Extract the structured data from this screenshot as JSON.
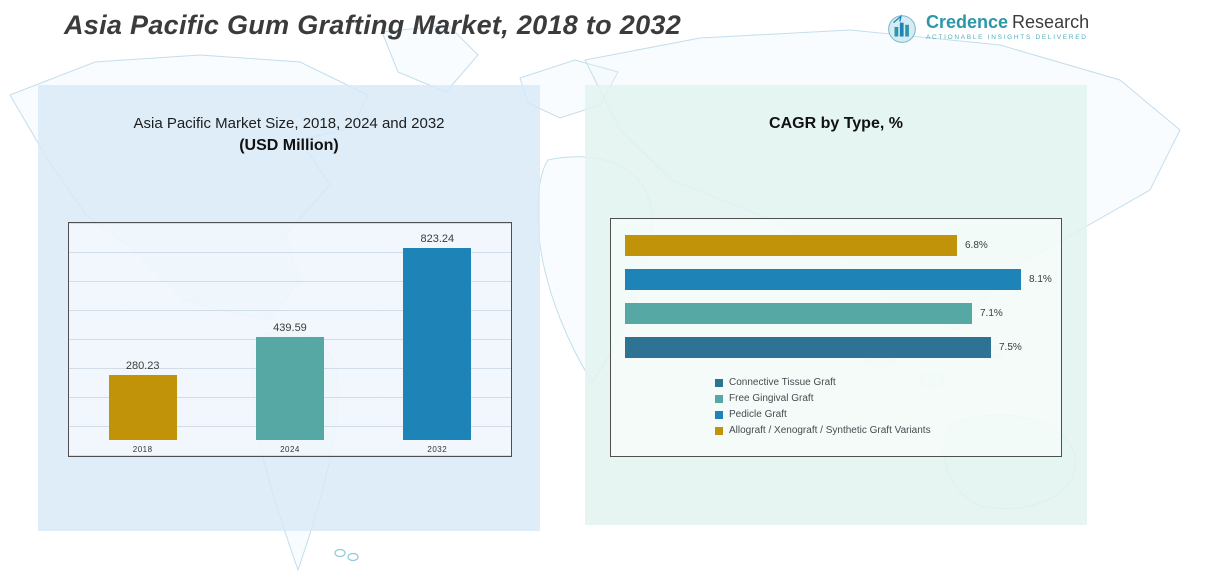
{
  "page": {
    "title": "Asia Pacific Gum Grafting Market, 2018 to 2032"
  },
  "logo": {
    "brand_primary": "Credence",
    "brand_secondary": "Research",
    "tagline": "Actionable Insights Delivered",
    "icon": "bar-chart-circle-icon"
  },
  "panels": {
    "left": {
      "title_line1": "Asia Pacific Market Size, 2018, 2024 and 2032",
      "title_line2": "(USD Million)"
    },
    "right": {
      "title": "CAGR by Type, %"
    }
  },
  "colors": {
    "gold": "#C09309",
    "teal": "#55A8A4",
    "blue": "#1E84B8",
    "steel_blue": "#2E7394",
    "panel_left_bg": "#D8E9F6",
    "panel_right_bg": "#E2F3F0",
    "map_line": "#C3DEEC"
  },
  "chart_data": [
    {
      "type": "bar",
      "orientation": "vertical",
      "title": "Asia Pacific Market Size, 2018, 2024 and 2032 (USD Million)",
      "categories": [
        "2018",
        "2024",
        "2032"
      ],
      "values": [
        280.23,
        439.59,
        823.24
      ],
      "value_labels": [
        "280.23",
        "439.59",
        "823.24"
      ],
      "bar_colors": [
        "#C09309",
        "#55A8A4",
        "#1E84B8"
      ],
      "ylim": [
        0,
        900
      ],
      "grid": true,
      "legend_position": "none"
    },
    {
      "type": "bar",
      "orientation": "horizontal",
      "title": "CAGR by Type, %",
      "categories": [
        "Connective Tissue Graft",
        "Free Gingival Graft",
        "Pedicle Graft",
        "Allograft / Xenograft / Synthetic Graft Variants"
      ],
      "values": [
        7.5,
        7.1,
        8.1,
        6.8
      ],
      "value_labels": [
        "7.5%",
        "7.1%",
        "8.1%",
        "6.8%"
      ],
      "bar_colors": [
        "#2E7394",
        "#55A8A4",
        "#1E84B8",
        "#C09309"
      ],
      "xlim": [
        0,
        8.6
      ],
      "grid": false,
      "legend_position": "bottom-inside",
      "bar_order_top_to_bottom": [
        "Allograft / Xenograft / Synthetic Graft Variants",
        "Pedicle Graft",
        "Free Gingival Graft",
        "Connective Tissue Graft"
      ]
    }
  ]
}
